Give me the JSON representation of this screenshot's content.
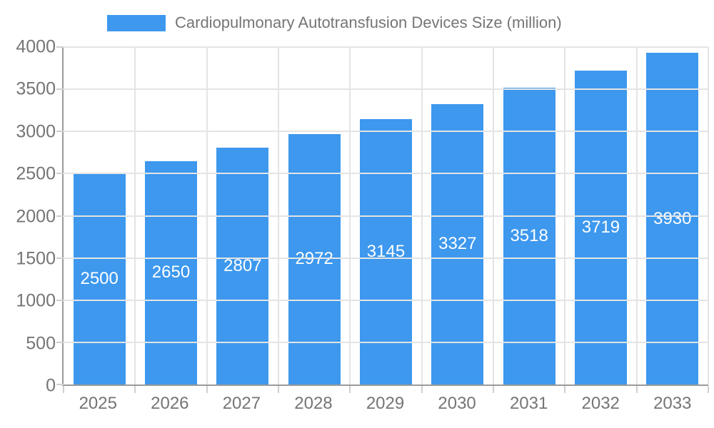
{
  "legend": {
    "label": "Cardiopulmonary Autotransfusion Devices Size (million)"
  },
  "chart_data": {
    "type": "bar",
    "title": "Cardiopulmonary Autotransfusion Devices Size (million)",
    "categories": [
      "2025",
      "2026",
      "2027",
      "2028",
      "2029",
      "2030",
      "2031",
      "2032",
      "2033"
    ],
    "values": [
      2500,
      2650,
      2807,
      2972,
      3145,
      3327,
      3518,
      3719,
      3930
    ],
    "xlabel": "",
    "ylabel": "",
    "ylim": [
      0,
      4000
    ],
    "yticks": [
      0,
      500,
      1000,
      1500,
      2000,
      2500,
      3000,
      3500,
      4000
    ],
    "legend_position": "top-left",
    "grid": true,
    "value_label_position": "inside-center"
  },
  "colors": {
    "accent": "#3d98ee",
    "grid": "#e4e4e4",
    "axis": "#9a9a9a",
    "tick": "#cfcfcf",
    "axis_label_text": "#757575",
    "bar_label_text": "#ffffff",
    "background": "#ffffff"
  }
}
